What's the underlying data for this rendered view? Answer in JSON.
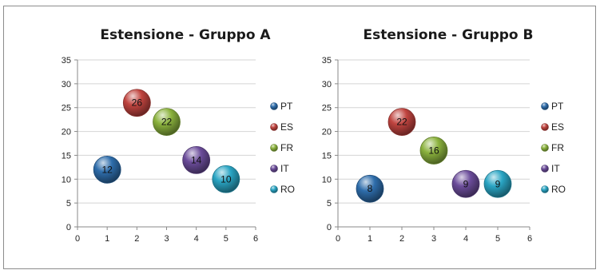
{
  "chart_data": [
    {
      "type": "bubble",
      "title": "Estensione - Gruppo A",
      "xlim": [
        0,
        6
      ],
      "ylim": [
        0,
        35
      ],
      "xticks": [
        "0",
        "1",
        "2",
        "3",
        "4",
        "5",
        "6"
      ],
      "yticks": [
        "0",
        "5",
        "10",
        "15",
        "20",
        "25",
        "30",
        "35"
      ],
      "grid": "horizontal",
      "legend_position": "right",
      "series": [
        {
          "name": "PT",
          "x": 1,
          "y": 12,
          "label": "12",
          "color": "#2e6dab"
        },
        {
          "name": "ES",
          "x": 2,
          "y": 26,
          "label": "26",
          "color": "#c0443f"
        },
        {
          "name": "FR",
          "x": 3,
          "y": 22,
          "label": "22",
          "color": "#8bb23d"
        },
        {
          "name": "IT",
          "x": 4,
          "y": 14,
          "label": "14",
          "color": "#6b4c9a"
        },
        {
          "name": "RO",
          "x": 5,
          "y": 10,
          "label": "10",
          "color": "#2aa5c4"
        }
      ]
    },
    {
      "type": "bubble",
      "title": "Estensione - Gruppo B",
      "xlim": [
        0,
        6
      ],
      "ylim": [
        0,
        35
      ],
      "xticks": [
        "0",
        "1",
        "2",
        "3",
        "4",
        "5",
        "6"
      ],
      "yticks": [
        "0",
        "5",
        "10",
        "15",
        "20",
        "25",
        "30",
        "35"
      ],
      "grid": "horizontal",
      "legend_position": "right",
      "series": [
        {
          "name": "PT",
          "x": 1,
          "y": 8,
          "label": "8",
          "color": "#2e6dab"
        },
        {
          "name": "ES",
          "x": 2,
          "y": 22,
          "label": "22",
          "color": "#c0443f"
        },
        {
          "name": "FR",
          "x": 3,
          "y": 16,
          "label": "16",
          "color": "#8bb23d"
        },
        {
          "name": "IT",
          "x": 4,
          "y": 9,
          "label": "9",
          "color": "#6b4c9a"
        },
        {
          "name": "RO",
          "x": 5,
          "y": 9,
          "label": "9",
          "color": "#2aa5c4"
        }
      ]
    }
  ]
}
